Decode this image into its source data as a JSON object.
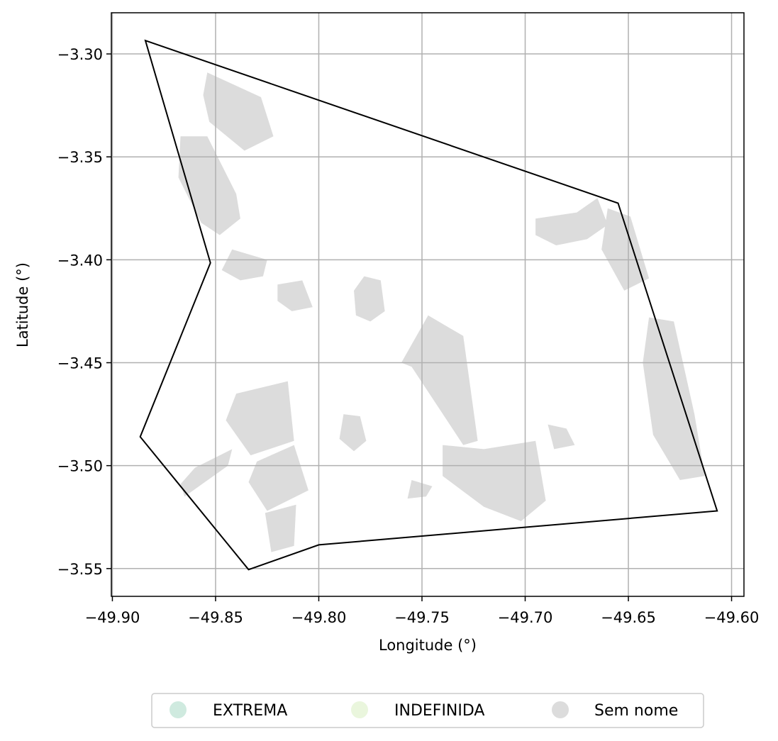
{
  "chart_data": {
    "type": "map",
    "xlabel": "Longitude (°)",
    "ylabel": "Latitude (°)",
    "xlim": [
      -49.9005,
      -49.594
    ],
    "ylim": [
      -3.5635,
      -3.28
    ],
    "xticks": [
      -49.9,
      -49.85,
      -49.8,
      -49.75,
      -49.7,
      -49.65,
      -49.6
    ],
    "xtick_labels": [
      "−49.90",
      "−49.85",
      "−49.80",
      "−49.75",
      "−49.70",
      "−49.65",
      "−49.60"
    ],
    "yticks": [
      -3.3,
      -3.35,
      -3.4,
      -3.45,
      -3.5,
      -3.55
    ],
    "ytick_labels": [
      "−3.30",
      "−3.35",
      "−3.40",
      "−3.45",
      "−3.50",
      "−3.55"
    ],
    "grid": true,
    "legend": {
      "placement": "bottom-center",
      "entries": [
        {
          "label": "EXTREMA",
          "color": "#cfeadf"
        },
        {
          "label": "INDEFINIDA",
          "color": "#eaf6dd"
        },
        {
          "label": "Sem nome",
          "color": "#dcdcdc"
        }
      ]
    },
    "boundary": {
      "stroke": "#000000",
      "coords": [
        [
          -49.884,
          -3.2935
        ],
        [
          -49.655,
          -3.3725
        ],
        [
          -49.607,
          -3.522
        ],
        [
          -49.8,
          -3.5385
        ],
        [
          -49.834,
          -3.5505
        ],
        [
          -49.8865,
          -3.486
        ],
        [
          -49.8525,
          -3.4015
        ]
      ]
    },
    "areas_color": "#dcdcdc",
    "areas": [
      [
        [
          -49.854,
          -3.309
        ],
        [
          -49.828,
          -3.321
        ],
        [
          -49.822,
          -3.34
        ],
        [
          -49.836,
          -3.347
        ],
        [
          -49.853,
          -3.333
        ],
        [
          -49.856,
          -3.32
        ]
      ],
      [
        [
          -49.867,
          -3.34
        ],
        [
          -49.854,
          -3.34
        ],
        [
          -49.84,
          -3.368
        ],
        [
          -49.838,
          -3.38
        ],
        [
          -49.848,
          -3.388
        ],
        [
          -49.857,
          -3.382
        ],
        [
          -49.868,
          -3.36
        ]
      ],
      [
        [
          -49.842,
          -3.395
        ],
        [
          -49.825,
          -3.4
        ],
        [
          -49.827,
          -3.408
        ],
        [
          -49.838,
          -3.41
        ],
        [
          -49.847,
          -3.405
        ]
      ],
      [
        [
          -49.82,
          -3.412
        ],
        [
          -49.808,
          -3.41
        ],
        [
          -49.803,
          -3.423
        ],
        [
          -49.813,
          -3.425
        ],
        [
          -49.82,
          -3.42
        ]
      ],
      [
        [
          -49.778,
          -3.408
        ],
        [
          -49.77,
          -3.41
        ],
        [
          -49.768,
          -3.425
        ],
        [
          -49.775,
          -3.43
        ],
        [
          -49.782,
          -3.427
        ],
        [
          -49.783,
          -3.415
        ]
      ],
      [
        [
          -49.747,
          -3.427
        ],
        [
          -49.73,
          -3.437
        ],
        [
          -49.723,
          -3.488
        ],
        [
          -49.73,
          -3.49
        ],
        [
          -49.755,
          -3.452
        ],
        [
          -49.76,
          -3.45
        ]
      ],
      [
        [
          -49.695,
          -3.38
        ],
        [
          -49.675,
          -3.377
        ],
        [
          -49.665,
          -3.37
        ],
        [
          -49.66,
          -3.383
        ],
        [
          -49.67,
          -3.39
        ],
        [
          -49.685,
          -3.393
        ],
        [
          -49.695,
          -3.388
        ]
      ],
      [
        [
          -49.66,
          -3.375
        ],
        [
          -49.649,
          -3.379
        ],
        [
          -49.64,
          -3.409
        ],
        [
          -49.652,
          -3.415
        ],
        [
          -49.663,
          -3.395
        ]
      ],
      [
        [
          -49.64,
          -3.428
        ],
        [
          -49.628,
          -3.43
        ],
        [
          -49.618,
          -3.475
        ],
        [
          -49.613,
          -3.505
        ],
        [
          -49.625,
          -3.507
        ],
        [
          -49.638,
          -3.485
        ],
        [
          -49.643,
          -3.45
        ]
      ],
      [
        [
          -49.84,
          -3.465
        ],
        [
          -49.815,
          -3.459
        ],
        [
          -49.812,
          -3.488
        ],
        [
          -49.833,
          -3.495
        ],
        [
          -49.845,
          -3.478
        ]
      ],
      [
        [
          -49.83,
          -3.498
        ],
        [
          -49.812,
          -3.49
        ],
        [
          -49.805,
          -3.512
        ],
        [
          -49.825,
          -3.522
        ],
        [
          -49.834,
          -3.508
        ]
      ],
      [
        [
          -49.826,
          -3.523
        ],
        [
          -49.811,
          -3.519
        ],
        [
          -49.812,
          -3.539
        ],
        [
          -49.823,
          -3.542
        ]
      ],
      [
        [
          -49.86,
          -3.501
        ],
        [
          -49.842,
          -3.492
        ],
        [
          -49.844,
          -3.5
        ],
        [
          -49.865,
          -3.515
        ],
        [
          -49.867,
          -3.509
        ]
      ],
      [
        [
          -49.788,
          -3.475
        ],
        [
          -49.78,
          -3.476
        ],
        [
          -49.777,
          -3.488
        ],
        [
          -49.783,
          -3.493
        ],
        [
          -49.79,
          -3.487
        ]
      ],
      [
        [
          -49.74,
          -3.49
        ],
        [
          -49.72,
          -3.492
        ],
        [
          -49.695,
          -3.488
        ],
        [
          -49.69,
          -3.517
        ],
        [
          -49.702,
          -3.527
        ],
        [
          -49.72,
          -3.52
        ],
        [
          -49.74,
          -3.505
        ]
      ],
      [
        [
          -49.755,
          -3.507
        ],
        [
          -49.745,
          -3.51
        ],
        [
          -49.748,
          -3.515
        ],
        [
          -49.757,
          -3.516
        ]
      ],
      [
        [
          -49.689,
          -3.48
        ],
        [
          -49.68,
          -3.482
        ],
        [
          -49.676,
          -3.49
        ],
        [
          -49.686,
          -3.492
        ]
      ]
    ]
  }
}
